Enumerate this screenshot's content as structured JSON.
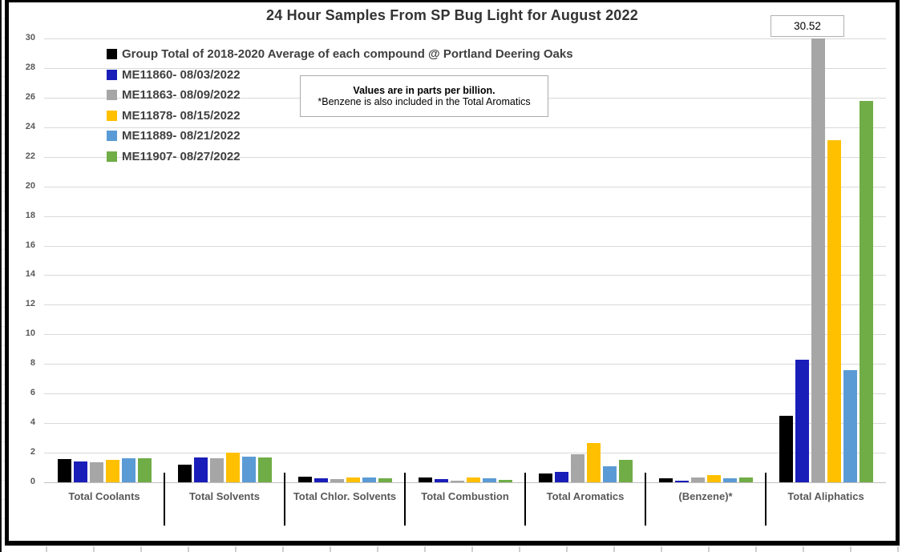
{
  "title": "24 Hour Samples From SP Bug Light for August 2022",
  "annotation": {
    "line1": "Values are in parts per billion.",
    "line2": "*Benzene is also included in the Total Aromatics"
  },
  "chart_data": {
    "type": "bar",
    "title": "24 Hour Samples From SP Bug Light for August 2022",
    "units_note": "Values are in parts per billion.",
    "categories": [
      "Total Coolants",
      "Total Solvents",
      "Total Chlor. Solvents",
      "Total Combustion",
      "Total Aromatics",
      "(Benzene)*",
      "Total Aliphatics"
    ],
    "series": [
      {
        "name": "Group Total of 2018-2020 Average of each compound @ Portland Deering Oaks",
        "color": "#000000",
        "values": [
          1.55,
          1.2,
          0.4,
          0.3,
          0.6,
          0.25,
          4.5
        ]
      },
      {
        "name": "ME11860- 08/03/2022",
        "color": "#1a1eb9",
        "values": [
          1.4,
          1.7,
          0.25,
          0.2,
          0.7,
          0.1,
          8.3
        ]
      },
      {
        "name": "ME11863- 08/09/2022",
        "color": "#a6a6a6",
        "values": [
          1.35,
          1.6,
          0.2,
          0.12,
          1.9,
          0.3,
          30.52
        ]
      },
      {
        "name": "ME11878- 08/15/2022",
        "color": "#ffc000",
        "values": [
          1.5,
          2.0,
          0.3,
          0.3,
          2.65,
          0.5,
          23.1
        ]
      },
      {
        "name": "ME11889- 08/21/2022",
        "color": "#5b9bd5",
        "values": [
          1.65,
          1.75,
          0.3,
          0.25,
          1.1,
          0.25,
          7.6
        ]
      },
      {
        "name": "ME11907- 08/27/2022",
        "color": "#70ad47",
        "values": [
          1.6,
          1.7,
          0.28,
          0.15,
          1.5,
          0.3,
          25.8
        ]
      }
    ],
    "ylim": [
      0,
      30
    ],
    "yticks": [
      0,
      2,
      4,
      6,
      8,
      10,
      12,
      14,
      16,
      18,
      20,
      22,
      24,
      26,
      28,
      30
    ],
    "grid": true,
    "legend_position": "top-left-inside",
    "data_labels": [
      {
        "series": "ME11863- 08/09/2022",
        "category": "Total Aliphatics",
        "label": "30.52"
      }
    ]
  }
}
